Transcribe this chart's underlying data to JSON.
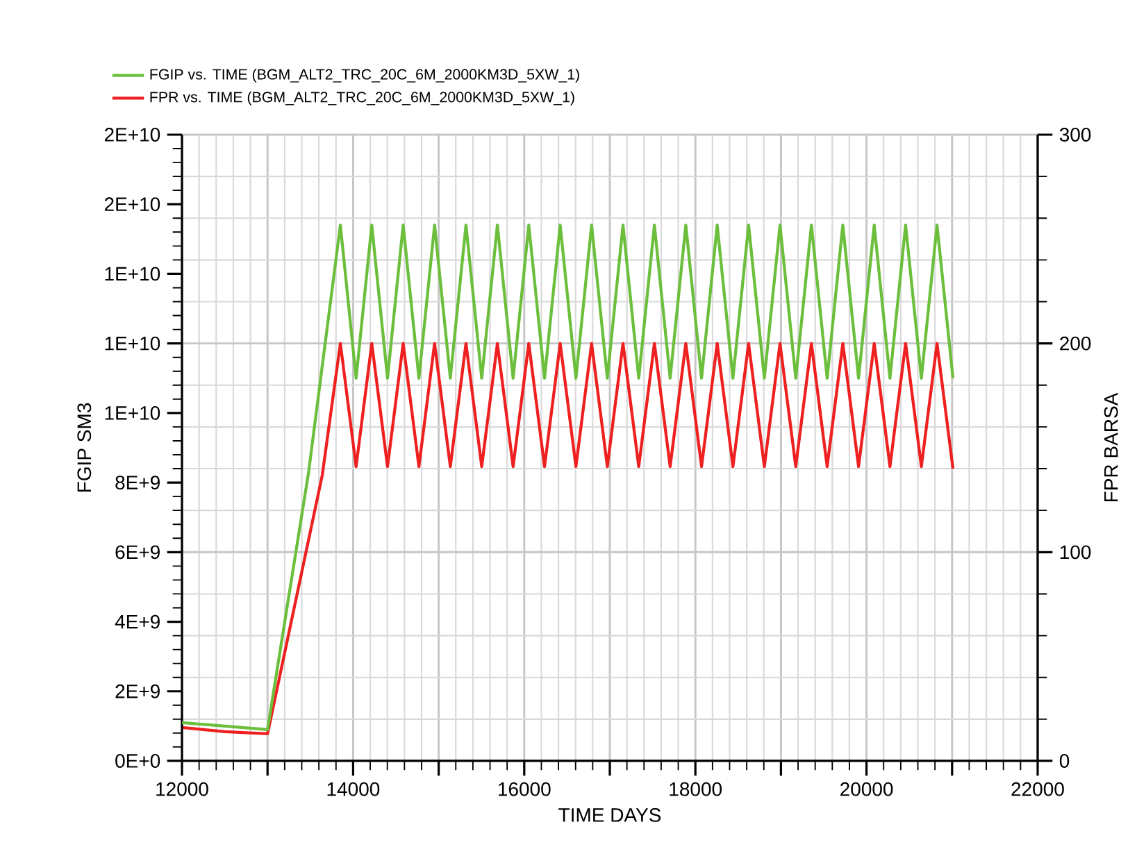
{
  "chart_data": {
    "type": "line",
    "xlabel": "TIME DAYS",
    "ylabel": "FGIP SM3",
    "y2label": "FPR BARSA",
    "xlim": [
      12000,
      22000
    ],
    "xticks": [
      12000,
      {
        "value": 13000,
        "label": null
      },
      14000,
      {
        "value": 15000,
        "label": null
      },
      16000,
      {
        "value": 17000,
        "label": null
      },
      18000,
      {
        "value": 19000,
        "label": null
      },
      20000,
      {
        "value": 21000,
        "label": null
      },
      22000
    ],
    "ylim": [
      0,
      18000000000
    ],
    "yticks": [
      {
        "value": 0,
        "label": "0E+0"
      },
      {
        "value": 2000000000,
        "label": "2E+9"
      },
      {
        "value": 4000000000,
        "label": "4E+9"
      },
      {
        "value": 6000000000,
        "label": "6E+9"
      },
      {
        "value": 8000000000,
        "label": "8E+9"
      },
      {
        "value": 10000000000,
        "label": "1E+10"
      },
      {
        "value": 12000000000,
        "label": "1E+10"
      },
      {
        "value": 14000000000,
        "label": "1E+10"
      },
      {
        "value": 16000000000,
        "label": "2E+10"
      },
      {
        "value": 18000000000,
        "label": "2E+10"
      }
    ],
    "y2lim": [
      0,
      300
    ],
    "y2ticks": [
      0,
      100,
      200,
      300
    ],
    "grid": true,
    "legend": "top left",
    "series": [
      {
        "name": "FGIP vs. TIME (BGM_ALT2_TRC_20C_6M_2000KM3D_5XW_1)",
        "color": "#6cbf3c",
        "x": [
          12000,
          12500,
          13000,
          13480,
          13851,
          14035,
          14218,
          14402,
          14585,
          14769,
          14952,
          15136,
          15319,
          15503,
          15686,
          15870,
          16053,
          16237,
          16420,
          16604,
          16787,
          16971,
          17154,
          17338,
          17521,
          17705,
          17888,
          18072,
          18255,
          18439,
          18622,
          18806,
          18989,
          19173,
          19356,
          19540,
          19723,
          19907,
          20090,
          20274,
          20457,
          20641,
          20824,
          21010
        ],
        "values": [
          1100000000,
          1000000000,
          900000000,
          8300000000,
          15400000000,
          11000000000,
          15400000000,
          11000000000,
          15400000000,
          11000000000,
          15400000000,
          11000000000,
          15400000000,
          11000000000,
          15400000000,
          11000000000,
          15400000000,
          11000000000,
          15400000000,
          11000000000,
          15400000000,
          11000000000,
          15400000000,
          11000000000,
          15400000000,
          11000000000,
          15400000000,
          11000000000,
          15400000000,
          11000000000,
          15400000000,
          11000000000,
          15400000000,
          11000000000,
          15400000000,
          11000000000,
          15400000000,
          11000000000,
          15400000000,
          11000000000,
          15400000000,
          11000000000,
          15400000000,
          11000000000
        ]
      },
      {
        "name": "FPR vs. TIME (BGM_ALT2_TRC_20C_6M_2000KM3D_5XW_1)",
        "color": "#ee2020",
        "axis": "y2",
        "x": [
          12000,
          12500,
          13000,
          13640,
          13851,
          14035,
          14218,
          14402,
          14585,
          14769,
          14952,
          15136,
          15319,
          15503,
          15686,
          15870,
          16053,
          16237,
          16420,
          16604,
          16787,
          16971,
          17154,
          17338,
          17521,
          17705,
          17888,
          18072,
          18255,
          18439,
          18622,
          18806,
          18989,
          19173,
          19356,
          19540,
          19723,
          19907,
          20090,
          20274,
          20457,
          20641,
          20824,
          21010
        ],
        "values": [
          16,
          14,
          13,
          137,
          200,
          141,
          200,
          141,
          200,
          141,
          200,
          141,
          200,
          141,
          200,
          141,
          200,
          141,
          200,
          141,
          200,
          141,
          200,
          141,
          200,
          141,
          200,
          141,
          200,
          141,
          200,
          141,
          200,
          141,
          200,
          141,
          200,
          141,
          200,
          141,
          200,
          141,
          200,
          140
        ]
      }
    ]
  }
}
